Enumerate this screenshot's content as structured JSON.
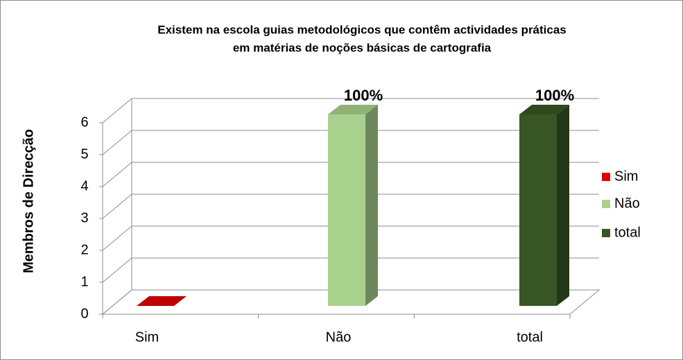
{
  "chart_data": {
    "type": "bar3d",
    "title": [
      "Existem na escola guias metodológicos que contêm actividades práticas",
      "em matérias de noções básicas de cartografia"
    ],
    "y_label": "Membros de Direcção",
    "categories": [
      "Sim",
      "Não",
      "total"
    ],
    "values": [
      0,
      6,
      6
    ],
    "colors": [
      "#e00000",
      "#a9d18e",
      "#375623"
    ],
    "annotations": [
      {
        "text": "100%",
        "category": "Não"
      },
      {
        "text": "100%",
        "category": "total"
      }
    ],
    "ylim": [
      0,
      6
    ],
    "yticks": [
      0,
      1,
      2,
      3,
      4,
      5,
      6
    ],
    "grid": true,
    "legend": "right"
  }
}
